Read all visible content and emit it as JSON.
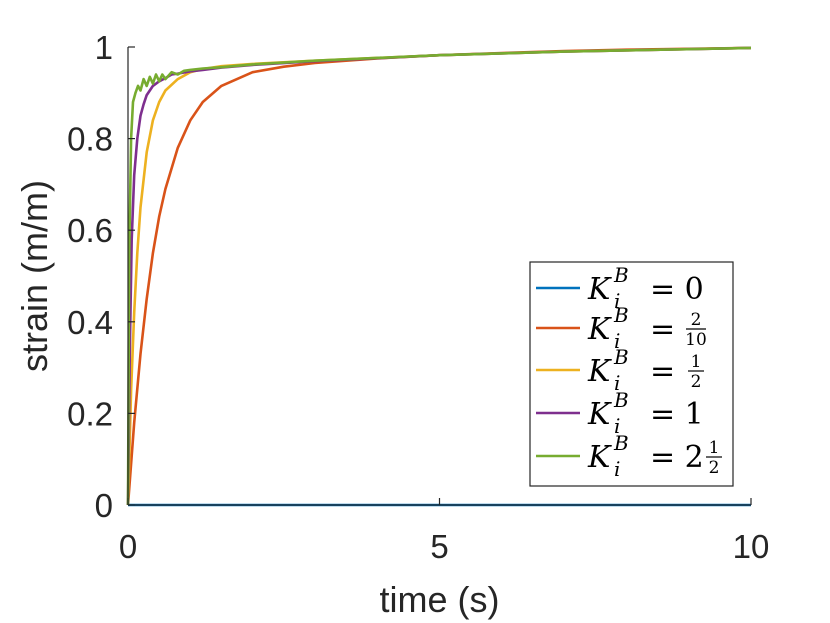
{
  "chart_data": {
    "type": "line",
    "xlabel": "time (s)",
    "ylabel": "strain (m/m)",
    "xlim": [
      0,
      10
    ],
    "ylim": [
      0,
      1
    ],
    "xticks": [
      "0",
      "5",
      "10"
    ],
    "yticks": [
      "0",
      "0.2",
      "0.4",
      "0.6",
      "0.8",
      "1"
    ],
    "grid": false,
    "legend_position": "right",
    "series": [
      {
        "name": "K_i^B = 0",
        "color": "#0072BD",
        "x": [
          0,
          10
        ],
        "y": [
          0,
          0
        ]
      },
      {
        "name": "K_i^B = 2/10",
        "color": "#D95319",
        "x": [
          0,
          0.1,
          0.2,
          0.3,
          0.4,
          0.5,
          0.6,
          0.8,
          1.0,
          1.2,
          1.5,
          2.0,
          2.5,
          3.0,
          4.0,
          5.0,
          6.0,
          7.0,
          8.0,
          9.0,
          10.0
        ],
        "y": [
          0,
          0.18,
          0.33,
          0.45,
          0.55,
          0.63,
          0.69,
          0.78,
          0.84,
          0.88,
          0.915,
          0.945,
          0.957,
          0.965,
          0.975,
          0.982,
          0.987,
          0.991,
          0.994,
          0.996,
          0.998
        ]
      },
      {
        "name": "K_i^B = 1/2",
        "color": "#EDB120",
        "x": [
          0,
          0.05,
          0.1,
          0.15,
          0.2,
          0.3,
          0.4,
          0.5,
          0.6,
          0.8,
          1.0,
          1.2,
          1.5,
          2.0,
          3.0,
          5.0,
          7.0,
          10.0
        ],
        "y": [
          0,
          0.25,
          0.42,
          0.55,
          0.65,
          0.77,
          0.84,
          0.88,
          0.905,
          0.93,
          0.945,
          0.952,
          0.958,
          0.963,
          0.97,
          0.982,
          0.99,
          0.998
        ]
      },
      {
        "name": "K_i^B = 1",
        "color": "#7E2F8E",
        "x": [
          0,
          0.03,
          0.06,
          0.1,
          0.15,
          0.2,
          0.25,
          0.3,
          0.35,
          0.4,
          0.5,
          0.6,
          0.7,
          0.8,
          1.0,
          1.2,
          1.5,
          2.0,
          3.0,
          5.0,
          7.0,
          10.0
        ],
        "y": [
          0,
          0.35,
          0.58,
          0.72,
          0.8,
          0.85,
          0.875,
          0.895,
          0.905,
          0.915,
          0.925,
          0.932,
          0.94,
          0.942,
          0.947,
          0.95,
          0.955,
          0.961,
          0.969,
          0.982,
          0.99,
          0.998
        ]
      },
      {
        "name": "K_i^B = 2 1/2",
        "color": "#77AC30",
        "x": [
          0,
          0.02,
          0.05,
          0.08,
          0.12,
          0.16,
          0.2,
          0.25,
          0.3,
          0.35,
          0.4,
          0.45,
          0.5,
          0.55,
          0.6,
          0.7,
          0.8,
          0.9,
          1.0,
          1.2,
          1.5,
          2.0,
          3.0,
          5.0,
          7.0,
          10.0
        ],
        "y": [
          0,
          0.55,
          0.8,
          0.88,
          0.9,
          0.915,
          0.905,
          0.93,
          0.915,
          0.935,
          0.92,
          0.94,
          0.925,
          0.94,
          0.93,
          0.945,
          0.94,
          0.948,
          0.95,
          0.953,
          0.956,
          0.962,
          0.97,
          0.982,
          0.99,
          0.998
        ]
      }
    ],
    "legend": [
      {
        "base": "K",
        "sup": "B",
        "sub": "i",
        "rhs": "= 0",
        "color": "#0072BD"
      },
      {
        "base": "K",
        "sup": "B",
        "sub": "i",
        "rhs": "=",
        "frac_num": "2",
        "frac_den": "10",
        "color": "#D95319"
      },
      {
        "base": "K",
        "sup": "B",
        "sub": "i",
        "rhs": "=",
        "frac_num": "1",
        "frac_den": "2",
        "color": "#EDB120"
      },
      {
        "base": "K",
        "sup": "B",
        "sub": "i",
        "rhs": "= 1",
        "color": "#7E2F8E"
      },
      {
        "base": "K",
        "sup": "B",
        "sub": "i",
        "rhs": "= 2",
        "frac_num": "1",
        "frac_den": "2",
        "color": "#77AC30"
      }
    ]
  }
}
